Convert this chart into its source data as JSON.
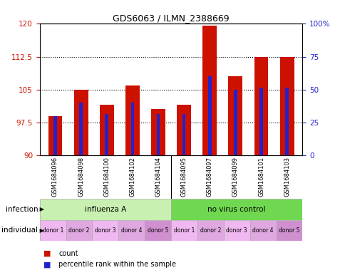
{
  "title": "GDS6063 / ILMN_2388669",
  "samples": [
    "GSM1684096",
    "GSM1684098",
    "GSM1684100",
    "GSM1684102",
    "GSM1684104",
    "GSM1684095",
    "GSM1684097",
    "GSM1684099",
    "GSM1684101",
    "GSM1684103"
  ],
  "red_values": [
    99.0,
    105.0,
    101.5,
    106.0,
    100.5,
    101.5,
    119.5,
    108.0,
    112.5,
    112.5
  ],
  "blue_values": [
    99.0,
    102.0,
    99.5,
    102.0,
    99.5,
    99.5,
    108.0,
    105.0,
    105.5,
    105.5
  ],
  "ymin": 90,
  "ymax": 120,
  "yticks_left": [
    90,
    97.5,
    105,
    112.5,
    120
  ],
  "yticks_right": [
    0,
    25,
    50,
    75,
    100
  ],
  "ytick_labels_right": [
    "0",
    "25",
    "50",
    "75",
    "100%"
  ],
  "grid_lines": [
    97.5,
    105,
    112.5
  ],
  "donors": [
    "donor 1",
    "donor 2",
    "donor 3",
    "donor 4",
    "donor 5",
    "donor 1",
    "donor 2",
    "donor 3",
    "donor 4",
    "donor 5"
  ],
  "bar_color_red": "#cc1100",
  "bar_color_blue": "#2222cc",
  "bar_width": 0.55,
  "blue_bar_width": 0.13,
  "legend_items": [
    "count",
    "percentile rank within the sample"
  ],
  "infection_label": "infection",
  "individual_label": "individual",
  "label_color_left": "#cc1100",
  "label_color_right": "#2222cc",
  "influenza_color": "#c8f0b0",
  "novirus_color": "#70d850",
  "donor_colors_alt": [
    "#f5c0f5",
    "#e8b0e8"
  ],
  "background_color": "#ffffff"
}
